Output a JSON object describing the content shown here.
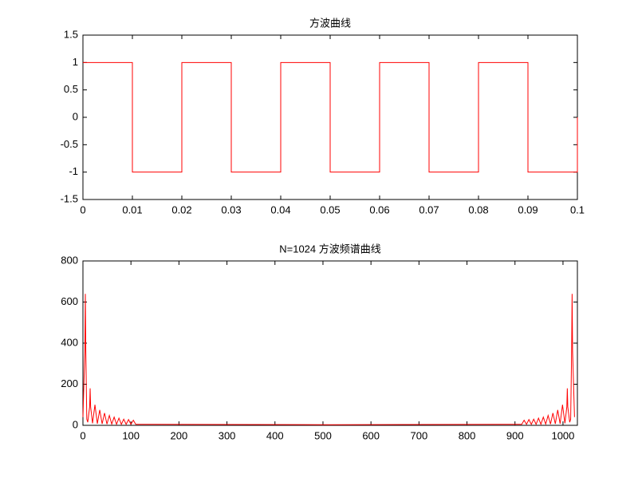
{
  "chart_data": [
    {
      "type": "line",
      "title": "方波曲线",
      "x": [
        0,
        0.01,
        0.01,
        0.02,
        0.02,
        0.03,
        0.03,
        0.04,
        0.04,
        0.05,
        0.05,
        0.06,
        0.06,
        0.07,
        0.07,
        0.08,
        0.08,
        0.09,
        0.09,
        0.1,
        0.1
      ],
      "series": [
        {
          "color": "#ff0000",
          "values": [
            1,
            1,
            -1,
            -1,
            1,
            1,
            -1,
            -1,
            1,
            1,
            -1,
            -1,
            1,
            1,
            -1,
            -1,
            1,
            1,
            -1,
            -1,
            0
          ]
        }
      ],
      "xlim": [
        0,
        0.1
      ],
      "xticks": [
        0,
        0.01,
        0.02,
        0.03,
        0.04,
        0.05,
        0.06,
        0.07,
        0.08,
        0.09,
        0.1
      ],
      "ylim": [
        -1.5,
        1.5
      ],
      "yticks": [
        -1.5,
        -1,
        -0.5,
        0,
        0.5,
        1,
        1.5
      ]
    },
    {
      "type": "line",
      "title": "N=1024 方波频谱曲线",
      "x": [
        0,
        4,
        5,
        6,
        8,
        10,
        14,
        15,
        16,
        20,
        25,
        30,
        35,
        40,
        45,
        50,
        55,
        60,
        65,
        70,
        75,
        80,
        85,
        90,
        95,
        100,
        105,
        110,
        150,
        512,
        874,
        914,
        919,
        924,
        929,
        934,
        939,
        944,
        949,
        954,
        959,
        964,
        969,
        974,
        979,
        984,
        989,
        994,
        999,
        1004,
        1008,
        1009,
        1010,
        1014,
        1016,
        1018,
        1019,
        1020,
        1024
      ],
      "series": [
        {
          "color": "#ff0000",
          "values": [
            40,
            360,
            640,
            360,
            30,
            15,
            90,
            180,
            90,
            10,
            100,
            8,
            75,
            7,
            60,
            6,
            48,
            6,
            40,
            5,
            35,
            5,
            30,
            5,
            28,
            5,
            25,
            5,
            5,
            3,
            5,
            5,
            25,
            5,
            28,
            5,
            30,
            5,
            35,
            5,
            40,
            6,
            48,
            6,
            60,
            7,
            75,
            8,
            100,
            10,
            90,
            180,
            90,
            15,
            30,
            360,
            640,
            360,
            40
          ]
        }
      ],
      "xlim": [
        0,
        1030
      ],
      "xticks": [
        0,
        100,
        200,
        300,
        400,
        500,
        600,
        700,
        800,
        900,
        1000
      ],
      "ylim": [
        0,
        800
      ],
      "yticks": [
        0,
        200,
        400,
        600,
        800
      ]
    }
  ]
}
